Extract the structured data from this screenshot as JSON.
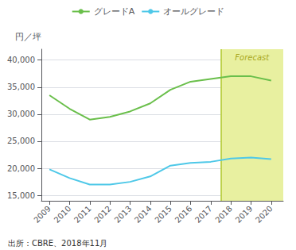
{
  "chart_data": {
    "type": "line",
    "x": [
      2009,
      2010,
      2011,
      2012,
      2013,
      2014,
      2015,
      2016,
      2017,
      2018,
      2019,
      2020
    ],
    "series": [
      {
        "name": "グレードA",
        "color": "#6abf4b",
        "values": [
          33500,
          31000,
          29000,
          29500,
          30500,
          32000,
          34500,
          36000,
          36500,
          37000,
          37000,
          36200
        ]
      },
      {
        "name": "オールグレード",
        "color": "#4ec8e8",
        "values": [
          19800,
          18200,
          17000,
          17000,
          17500,
          18500,
          20500,
          21000,
          21200,
          21800,
          22000,
          21700
        ]
      }
    ],
    "ylabel": "円／坪",
    "xlim": [
      2008.6,
      2020.6
    ],
    "xticks": [
      2009,
      2010,
      2011,
      2012,
      2013,
      2014,
      2015,
      2016,
      2017,
      2018,
      2019,
      2020
    ],
    "ylim": [
      14000,
      42000
    ],
    "yticks": [
      {
        "value": 15000,
        "label": "15,000"
      },
      {
        "value": 20000,
        "label": "20,000"
      },
      {
        "value": 25000,
        "label": "25,000"
      },
      {
        "value": 30000,
        "label": "30,000"
      },
      {
        "value": 35000,
        "label": "35,000"
      },
      {
        "value": 40000,
        "label": "40,000"
      }
    ],
    "forecast": {
      "start": 2018,
      "label": "Forecast",
      "color": "#e8f0a0",
      "line_color": "#b0c830",
      "label_color": "#a8a820"
    },
    "source": "出所：CBRE、2018年11月",
    "grid": true,
    "legend": "top"
  }
}
